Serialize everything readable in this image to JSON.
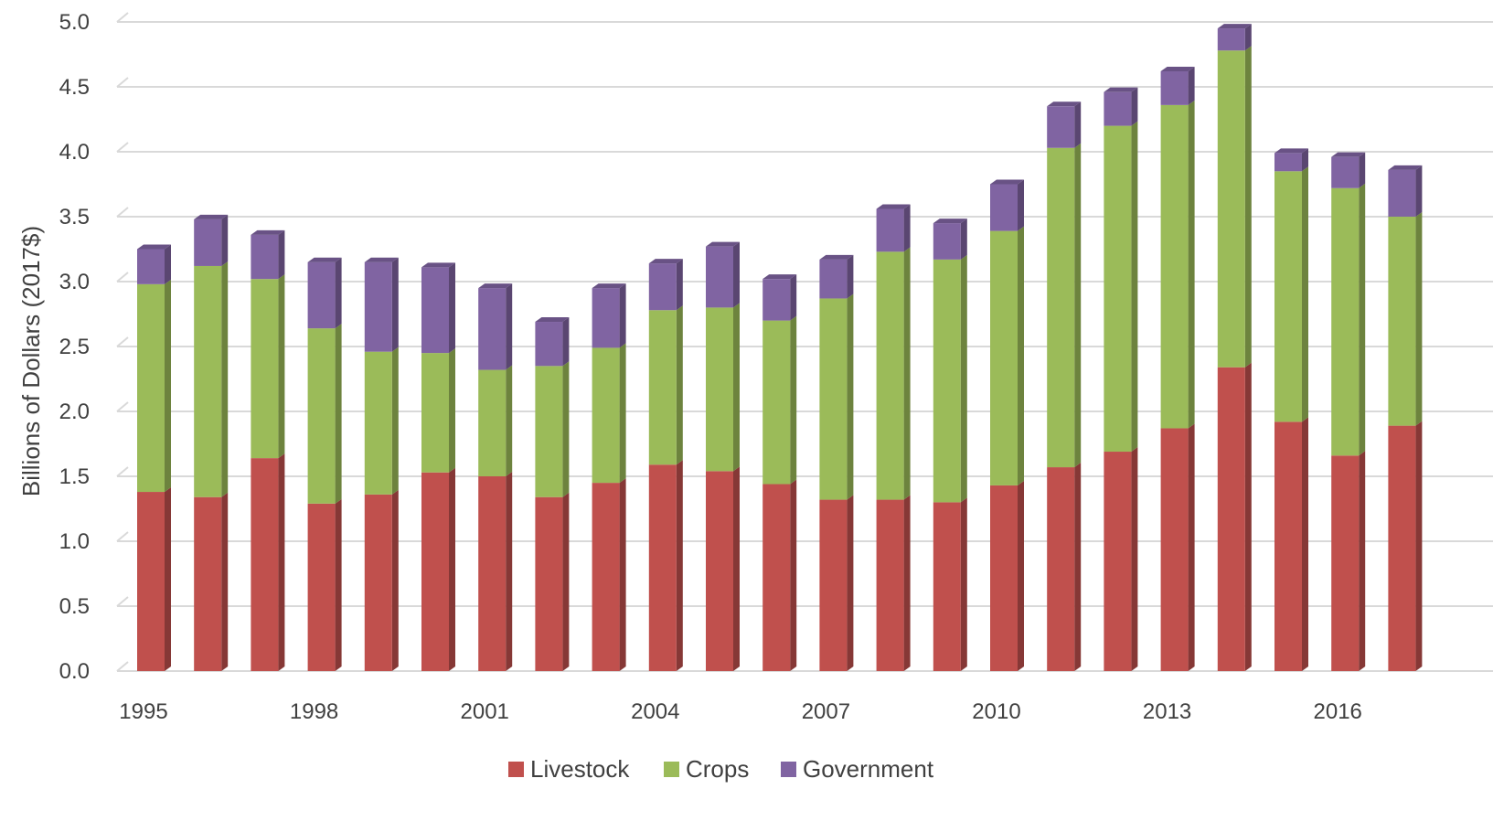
{
  "chart_data": {
    "type": "bar",
    "stacked": true,
    "ylabel": "Billions of Dollars (2017$)",
    "xlabel": "",
    "ylim": [
      0,
      5.0
    ],
    "yticks": [
      "0.0",
      "0.5",
      "1.0",
      "1.5",
      "2.0",
      "2.5",
      "3.0",
      "3.5",
      "4.0",
      "4.5",
      "5.0"
    ],
    "categories": [
      "1995",
      "1996",
      "1997",
      "1998",
      "1999",
      "2000",
      "2001",
      "2002",
      "2003",
      "2004",
      "2005",
      "2006",
      "2007",
      "2008",
      "2009",
      "2010",
      "2011",
      "2012",
      "2013",
      "2014",
      "2015",
      "2016",
      "2017"
    ],
    "x_tick_labels": [
      "1995",
      "1998",
      "2001",
      "2004",
      "2007",
      "2010",
      "2013",
      "2016"
    ],
    "series": [
      {
        "name": "Livestock",
        "color": "#C0504D",
        "values": [
          1.38,
          1.34,
          1.64,
          1.29,
          1.36,
          1.53,
          1.5,
          1.34,
          1.45,
          1.59,
          1.54,
          1.44,
          1.32,
          1.32,
          1.3,
          1.43,
          1.57,
          1.69,
          1.87,
          2.34,
          1.92,
          1.66,
          1.89
        ]
      },
      {
        "name": "Crops",
        "color": "#9BBB59",
        "values": [
          1.6,
          1.78,
          1.38,
          1.35,
          1.1,
          0.92,
          0.82,
          1.01,
          1.04,
          1.19,
          1.26,
          1.26,
          1.55,
          1.91,
          1.87,
          1.96,
          2.46,
          2.51,
          2.49,
          2.44,
          1.93,
          2.06,
          1.61
        ]
      },
      {
        "name": "Government",
        "color": "#8064A2",
        "values": [
          0.27,
          0.36,
          0.34,
          0.51,
          0.69,
          0.66,
          0.63,
          0.34,
          0.46,
          0.36,
          0.47,
          0.32,
          0.3,
          0.33,
          0.28,
          0.36,
          0.32,
          0.26,
          0.26,
          0.17,
          0.14,
          0.24,
          0.36
        ]
      }
    ],
    "legend": {
      "position": "bottom",
      "items": [
        "Livestock",
        "Crops",
        "Government"
      ]
    },
    "grid": true
  }
}
